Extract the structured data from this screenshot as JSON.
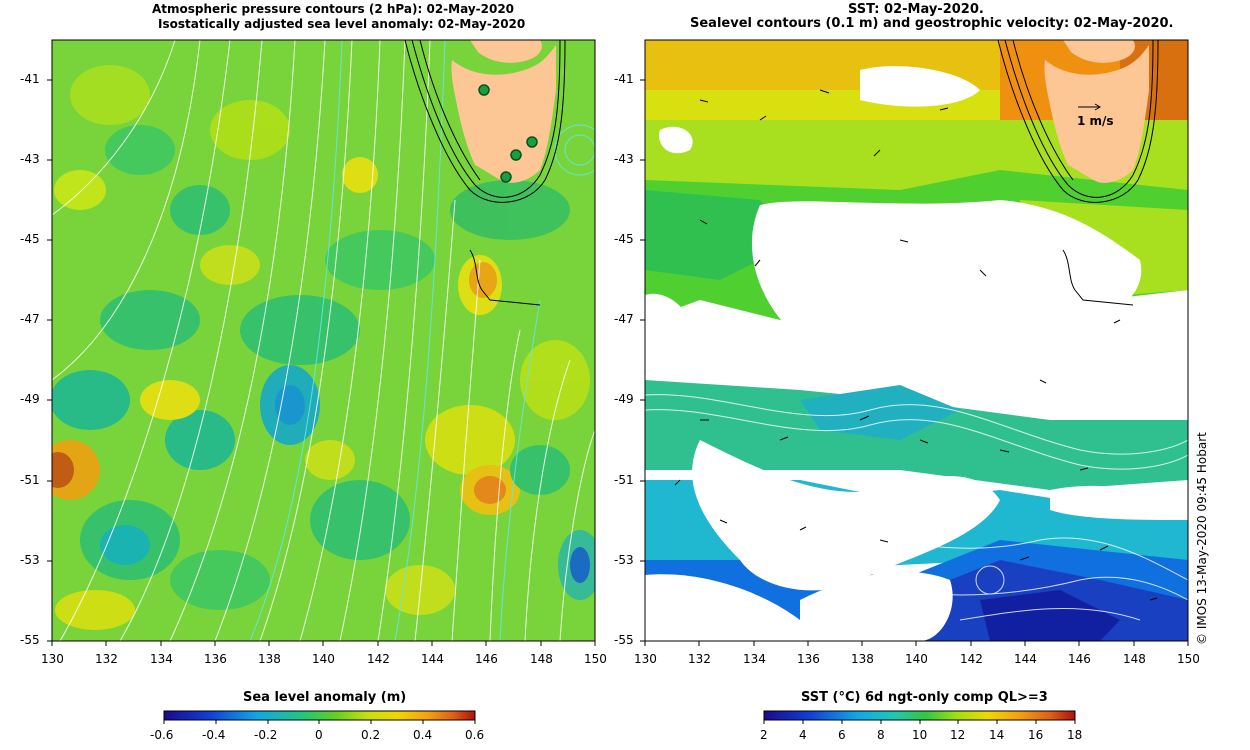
{
  "left_panel": {
    "title_line1": "Atmospheric pressure contours (2 hPa): 02-May-2020",
    "title_line2": "Isostatically adjusted sea level anomaly: 02-May-2020",
    "colorbar_title": "Sea level anomaly (m)",
    "colorbar_ticks": [
      "-0.6",
      "-0.4",
      "-0.2",
      "0",
      "0.2",
      "0.4",
      "0.6"
    ],
    "colorbar_colors": [
      "#1b0a8c",
      "#1040d8",
      "#10a8e8",
      "#20c878",
      "#40d020",
      "#b0e010",
      "#f0d800",
      "#f5a010",
      "#e06010",
      "#b01010"
    ]
  },
  "right_panel": {
    "title_line1": "SST: 02-May-2020.",
    "title_line2": "Sealevel contours (0.1 m) and geostrophic velocity: 02-May-2020.",
    "colorbar_title": "SST (°C) 6d ngt-only comp QL>=3",
    "colorbar_ticks": [
      "2",
      "4",
      "6",
      "8",
      "10",
      "12",
      "14",
      "16",
      "18"
    ],
    "colorbar_colors": [
      "#1b0a8c",
      "#1040d8",
      "#10a8e8",
      "#20c8b0",
      "#30c840",
      "#a0e010",
      "#f0d800",
      "#f5a010",
      "#e06010",
      "#b01010"
    ],
    "velocity_scale_label": "1 m/s"
  },
  "axes": {
    "lat_labels": [
      "-41",
      "-43",
      "-45",
      "-47",
      "-49",
      "-51",
      "-53",
      "-55"
    ],
    "lon_labels": [
      "130",
      "132",
      "134",
      "136",
      "138",
      "140",
      "142",
      "144",
      "146",
      "148",
      "150"
    ]
  },
  "credit": "© IMOS 13-May-2020 09:45 Hobart",
  "colors": {
    "land": "#fcc795",
    "ocean_base_sla": "#70d030",
    "cloud_mask": "#ffffff",
    "contour": "#ffffff",
    "station_marker": "#18a040"
  }
}
